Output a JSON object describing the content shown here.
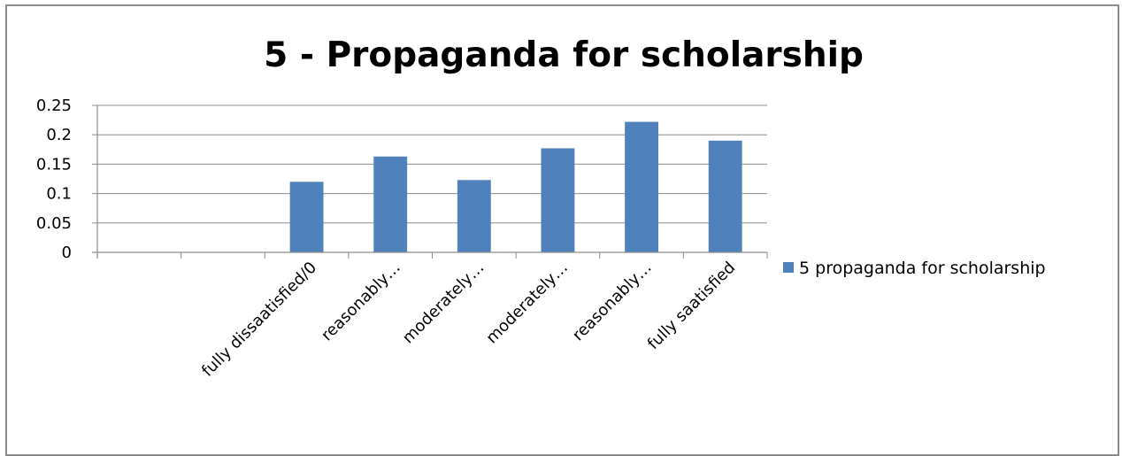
{
  "chart_data": {
    "type": "bar",
    "title": "5 - Propaganda for scholarship",
    "xlabel": "",
    "ylabel": "",
    "categories": [
      "",
      "",
      "fully dissaatisfied/0",
      "reasonably…",
      "moderately…",
      "moderately…",
      "reasonably…",
      "fully saatisfied"
    ],
    "series": [
      {
        "name": "5 propaganda for scholarship",
        "values": [
          null,
          null,
          0.12,
          0.163,
          0.123,
          0.177,
          0.222,
          0.19
        ]
      }
    ],
    "yticks": [
      "0",
      "0.05",
      "0.1",
      "0.15",
      "0.2",
      "0.25"
    ],
    "ylim": [
      0,
      0.25
    ],
    "grid": true,
    "legend_position": "right",
    "colors": {
      "bar": "#4f81bd",
      "grid": "#8c8c8c",
      "axis": "#8c8c8c"
    }
  }
}
